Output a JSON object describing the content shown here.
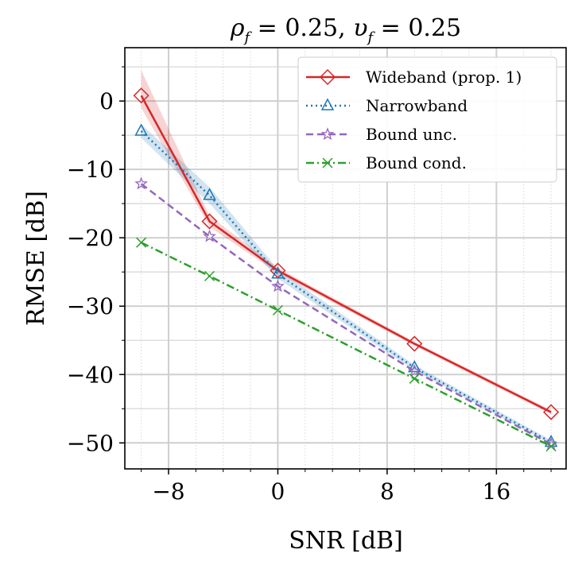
{
  "chart_data": {
    "type": "line",
    "title": "ρf = 0.25, υf = 0.25",
    "title_parts": {
      "rho": "ρ",
      "rho_sub": "f",
      "rho_val": " = 0.25, ",
      "upsilon": "υ",
      "upsilon_sub": "f",
      "upsilon_val": " = 0.25"
    },
    "xlabel": "SNR [dB]",
    "ylabel": "RMSE [dB]",
    "xlim": [
      -11.2,
      21.1
    ],
    "ylim": [
      -53.8,
      7.8
    ],
    "xticks": [
      -8,
      0,
      8,
      16
    ],
    "xtick_labels": [
      "−8",
      "0",
      "8",
      "16"
    ],
    "yticks": [
      0,
      -10,
      -20,
      -30,
      -40,
      -50
    ],
    "ytick_labels": [
      "0",
      "−10",
      "−20",
      "−30",
      "−40",
      "−50"
    ],
    "grid": true,
    "legend_position": "top-right",
    "x": [
      -10,
      -5,
      0,
      10,
      20
    ],
    "series": [
      {
        "name": "Wideband (prop. 1)",
        "color": "#d62728",
        "dash": "solid",
        "marker": "diamond",
        "values": [
          0.8,
          -17.6,
          -24.8,
          -35.5,
          -45.5
        ],
        "band_upper": [
          4.5,
          -16.8,
          -24.4,
          -35.2,
          -45.2
        ],
        "band_lower": [
          -1.0,
          -18.4,
          -25.2,
          -35.8,
          -45.8
        ]
      },
      {
        "name": "Narrowband",
        "color": "#1f77b4",
        "dash": "dotted",
        "marker": "triangle",
        "values": [
          -4.4,
          -13.8,
          -25.3,
          -39.0,
          -49.9
        ],
        "band_upper": [
          -3.4,
          -12.6,
          -24.6,
          -38.6,
          -49.6
        ],
        "band_lower": [
          -5.4,
          -15.0,
          -26.0,
          -39.4,
          -50.2
        ]
      },
      {
        "name": "Bound unc.",
        "color": "#9467bd",
        "dash": "dashed",
        "marker": "star",
        "values": [
          -12.1,
          -19.8,
          -27.1,
          -39.5,
          -50.2
        ]
      },
      {
        "name": "Bound cond.",
        "color": "#2ca02c",
        "dash": "dashdot",
        "marker": "x",
        "values": [
          -20.7,
          -25.6,
          -30.6,
          -40.6,
          -50.5
        ]
      }
    ]
  }
}
